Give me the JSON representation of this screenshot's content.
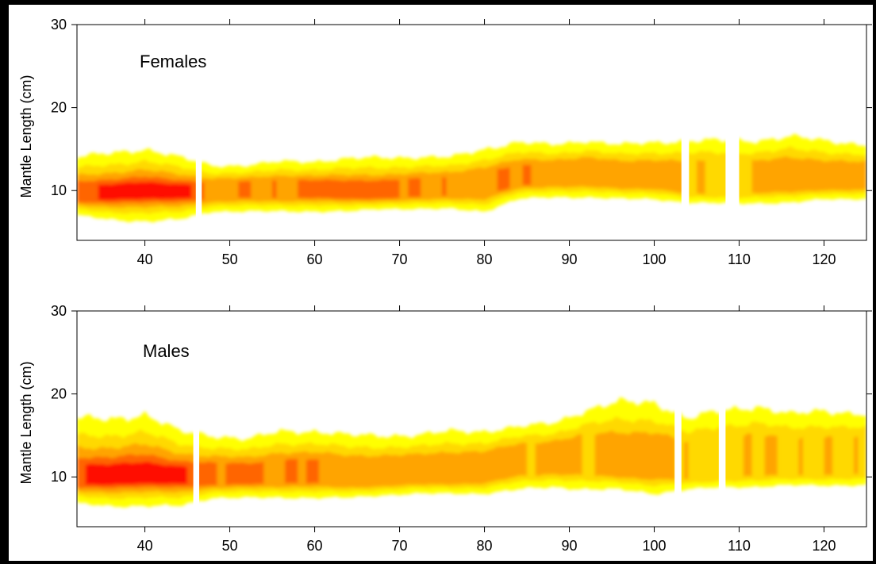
{
  "colors": {
    "frame": "#000000",
    "low": "#ffff00",
    "mid": "#ff9a00",
    "high": "#ff0000",
    "background": "#ffffff"
  },
  "chart_data": [
    {
      "type": "heatmap",
      "panel_label": "Females",
      "xlabel": "",
      "ylabel": "Mantle Length (cm)",
      "xlim": [
        32,
        125
      ],
      "ylim": [
        4,
        30
      ],
      "xticks": [
        40,
        50,
        60,
        70,
        80,
        90,
        100,
        110,
        120
      ],
      "yticks": [
        10,
        20,
        30
      ],
      "grid": false,
      "gaps_x": [
        [
          46,
          46.7
        ],
        [
          103.2,
          104.1
        ],
        [
          108.4,
          110
        ]
      ],
      "density_profile": [
        {
          "x": 32,
          "center": 9.5,
          "low_edge": 7.0,
          "high_edge": 14.0,
          "intensity": 0.7
        },
        {
          "x": 36,
          "center": 9.6,
          "low_edge": 6.5,
          "high_edge": 14.5,
          "intensity": 0.85
        },
        {
          "x": 40,
          "center": 9.8,
          "low_edge": 6.3,
          "high_edge": 15.0,
          "intensity": 1.0
        },
        {
          "x": 44,
          "center": 9.8,
          "low_edge": 6.5,
          "high_edge": 14.0,
          "intensity": 0.95
        },
        {
          "x": 48,
          "center": 9.8,
          "low_edge": 7.5,
          "high_edge": 13.0,
          "intensity": 0.55
        },
        {
          "x": 52,
          "center": 10.0,
          "low_edge": 7.5,
          "high_edge": 13.0,
          "intensity": 0.6
        },
        {
          "x": 56,
          "center": 10.0,
          "low_edge": 7.5,
          "high_edge": 13.5,
          "intensity": 0.6
        },
        {
          "x": 60,
          "center": 10.0,
          "low_edge": 7.5,
          "high_edge": 13.5,
          "intensity": 0.65
        },
        {
          "x": 64,
          "center": 9.8,
          "low_edge": 7.5,
          "high_edge": 13.8,
          "intensity": 0.65
        },
        {
          "x": 68,
          "center": 9.7,
          "low_edge": 7.8,
          "high_edge": 14.0,
          "intensity": 0.7
        },
        {
          "x": 72,
          "center": 10.0,
          "low_edge": 7.8,
          "high_edge": 14.0,
          "intensity": 0.6
        },
        {
          "x": 76,
          "center": 10.3,
          "low_edge": 7.8,
          "high_edge": 14.0,
          "intensity": 0.6
        },
        {
          "x": 80,
          "center": 10.5,
          "low_edge": 7.5,
          "high_edge": 15.0,
          "intensity": 0.6
        },
        {
          "x": 84,
          "center": 11.5,
          "low_edge": 9.0,
          "high_edge": 15.8,
          "intensity": 0.6
        },
        {
          "x": 88,
          "center": 11.8,
          "low_edge": 9.2,
          "high_edge": 15.5,
          "intensity": 0.55
        },
        {
          "x": 92,
          "center": 11.8,
          "low_edge": 9.2,
          "high_edge": 16.0,
          "intensity": 0.5
        },
        {
          "x": 96,
          "center": 11.5,
          "low_edge": 9.0,
          "high_edge": 15.5,
          "intensity": 0.5
        },
        {
          "x": 100,
          "center": 11.5,
          "low_edge": 9.0,
          "high_edge": 15.8,
          "intensity": 0.55
        },
        {
          "x": 104,
          "center": 10.8,
          "low_edge": 8.5,
          "high_edge": 16.0,
          "intensity": 0.45
        },
        {
          "x": 108,
          "center": 10.8,
          "low_edge": 8.5,
          "high_edge": 16.0,
          "intensity": 0.4
        },
        {
          "x": 112,
          "center": 11.0,
          "low_edge": 8.5,
          "high_edge": 16.0,
          "intensity": 0.5
        },
        {
          "x": 116,
          "center": 11.2,
          "low_edge": 8.5,
          "high_edge": 16.5,
          "intensity": 0.55
        },
        {
          "x": 120,
          "center": 11.2,
          "low_edge": 9.0,
          "high_edge": 16.0,
          "intensity": 0.55
        },
        {
          "x": 125,
          "center": 11.2,
          "low_edge": 9.0,
          "high_edge": 15.5,
          "intensity": 0.55
        }
      ]
    },
    {
      "type": "heatmap",
      "panel_label": "Males",
      "xlabel": "",
      "ylabel": "Mantle Length (cm)",
      "xlim": [
        32,
        125
      ],
      "ylim": [
        4,
        30
      ],
      "xticks": [
        40,
        50,
        60,
        70,
        80,
        90,
        100,
        110,
        120
      ],
      "yticks": [
        10,
        20,
        30
      ],
      "grid": false,
      "gaps_x": [
        [
          45.7,
          46.4
        ],
        [
          102.4,
          103.2
        ],
        [
          107.6,
          108.4
        ]
      ],
      "density_profile": [
        {
          "x": 32,
          "center": 9.8,
          "low_edge": 6.8,
          "high_edge": 17.0,
          "intensity": 0.8
        },
        {
          "x": 36,
          "center": 9.8,
          "low_edge": 6.5,
          "high_edge": 17.0,
          "intensity": 1.0
        },
        {
          "x": 40,
          "center": 10.0,
          "low_edge": 6.5,
          "high_edge": 17.5,
          "intensity": 1.0
        },
        {
          "x": 44,
          "center": 10.0,
          "low_edge": 6.5,
          "high_edge": 15.5,
          "intensity": 0.9
        },
        {
          "x": 48,
          "center": 9.8,
          "low_edge": 7.5,
          "high_edge": 15.0,
          "intensity": 0.6
        },
        {
          "x": 52,
          "center": 10.0,
          "low_edge": 7.5,
          "high_edge": 14.5,
          "intensity": 0.65
        },
        {
          "x": 56,
          "center": 10.2,
          "low_edge": 7.5,
          "high_edge": 15.5,
          "intensity": 0.6
        },
        {
          "x": 60,
          "center": 10.2,
          "low_edge": 7.5,
          "high_edge": 15.5,
          "intensity": 0.6
        },
        {
          "x": 64,
          "center": 10.0,
          "low_edge": 7.5,
          "high_edge": 15.0,
          "intensity": 0.55
        },
        {
          "x": 68,
          "center": 10.0,
          "low_edge": 7.8,
          "high_edge": 15.0,
          "intensity": 0.55
        },
        {
          "x": 72,
          "center": 10.2,
          "low_edge": 8.0,
          "high_edge": 15.0,
          "intensity": 0.55
        },
        {
          "x": 76,
          "center": 10.3,
          "low_edge": 8.0,
          "high_edge": 15.5,
          "intensity": 0.55
        },
        {
          "x": 80,
          "center": 10.5,
          "low_edge": 8.0,
          "high_edge": 15.5,
          "intensity": 0.55
        },
        {
          "x": 84,
          "center": 11.8,
          "low_edge": 8.5,
          "high_edge": 16.0,
          "intensity": 0.5
        },
        {
          "x": 88,
          "center": 12.0,
          "low_edge": 8.8,
          "high_edge": 16.5,
          "intensity": 0.5
        },
        {
          "x": 92,
          "center": 12.0,
          "low_edge": 8.5,
          "high_edge": 18.0,
          "intensity": 0.45
        },
        {
          "x": 96,
          "center": 11.5,
          "low_edge": 8.5,
          "high_edge": 19.0,
          "intensity": 0.5
        },
        {
          "x": 100,
          "center": 11.5,
          "low_edge": 8.0,
          "high_edge": 19.0,
          "intensity": 0.5
        },
        {
          "x": 104,
          "center": 11.0,
          "low_edge": 8.5,
          "high_edge": 17.0,
          "intensity": 0.45
        },
        {
          "x": 108,
          "center": 11.2,
          "low_edge": 8.8,
          "high_edge": 18.0,
          "intensity": 0.4
        },
        {
          "x": 112,
          "center": 11.5,
          "low_edge": 8.8,
          "high_edge": 18.5,
          "intensity": 0.45
        },
        {
          "x": 116,
          "center": 11.5,
          "low_edge": 9.0,
          "high_edge": 17.5,
          "intensity": 0.45
        },
        {
          "x": 120,
          "center": 11.5,
          "low_edge": 9.0,
          "high_edge": 18.0,
          "intensity": 0.45
        },
        {
          "x": 125,
          "center": 11.8,
          "low_edge": 9.0,
          "high_edge": 17.5,
          "intensity": 0.4
        }
      ]
    }
  ]
}
